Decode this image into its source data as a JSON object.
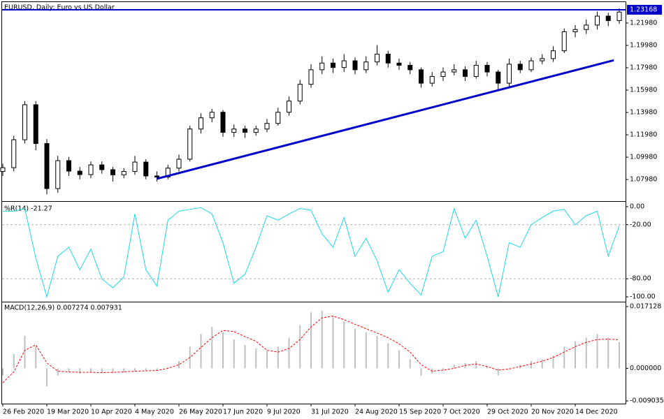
{
  "chart_data": [
    {
      "type": "candlestick",
      "title": "EURUSD, Daily: Euro vs US Dollar",
      "categories": [
        "26 Feb 2020",
        null,
        null,
        null,
        "19 Mar 2020",
        null,
        null,
        null,
        "10 Apr 2020",
        null,
        null,
        null,
        "4 May 2020",
        null,
        null,
        null,
        "26 May 2020",
        null,
        null,
        null,
        "17 Jun 2020",
        null,
        null,
        null,
        "9 Jul 2020",
        null,
        null,
        null,
        "31 Jul 2020",
        null,
        null,
        null,
        "24 Aug 2020",
        null,
        null,
        null,
        "15 Sep 2020",
        null,
        null,
        null,
        "7 Oct 2020",
        null,
        null,
        null,
        "29 Oct 2020",
        null,
        null,
        null,
        "20 Nov 2020",
        null,
        null,
        null,
        "14 Dec 2020",
        null,
        null,
        null,
        null
      ],
      "open": [
        1.087,
        1.0904,
        1.1154,
        1.1467,
        1.112,
        1.0717,
        1.0967,
        1.0873,
        1.0842,
        1.0929,
        1.0886,
        1.084,
        1.087,
        1.0954,
        1.083,
        1.082,
        1.09,
        1.098,
        1.125,
        1.135,
        1.14,
        1.122,
        1.125,
        1.122,
        1.125,
        1.13,
        1.14,
        1.15,
        1.165,
        1.178,
        1.184,
        1.18,
        1.186,
        1.178,
        1.185,
        1.192,
        1.184,
        1.182,
        1.178,
        1.166,
        1.172,
        1.176,
        1.178,
        1.172,
        1.182,
        1.176,
        1.166,
        1.183,
        1.178,
        1.186,
        1.188,
        1.195,
        1.212,
        1.214,
        1.218,
        1.226,
        1.222
      ],
      "high": [
        1.094,
        1.119,
        1.15,
        1.15,
        1.116,
        1.101,
        1.1,
        1.091,
        1.096,
        1.096,
        1.091,
        1.09,
        1.101,
        1.098,
        1.087,
        1.093,
        1.102,
        1.128,
        1.139,
        1.143,
        1.142,
        1.129,
        1.128,
        1.128,
        1.134,
        1.144,
        1.154,
        1.169,
        1.183,
        1.19,
        1.188,
        1.192,
        1.189,
        1.19,
        1.2,
        1.195,
        1.188,
        1.185,
        1.18,
        1.176,
        1.18,
        1.183,
        1.181,
        1.186,
        1.185,
        1.178,
        1.188,
        1.186,
        1.189,
        1.192,
        1.199,
        1.215,
        1.218,
        1.223,
        1.23,
        1.229,
        1.233
      ],
      "low": [
        1.083,
        1.087,
        1.112,
        1.106,
        1.0665,
        1.068,
        1.083,
        1.08,
        1.081,
        1.085,
        1.078,
        1.081,
        1.084,
        1.08,
        1.078,
        1.08,
        1.087,
        1.096,
        1.121,
        1.131,
        1.118,
        1.118,
        1.117,
        1.119,
        1.122,
        1.128,
        1.137,
        1.147,
        1.162,
        1.174,
        1.175,
        1.176,
        1.174,
        1.175,
        1.182,
        1.18,
        1.178,
        1.174,
        1.162,
        1.163,
        1.168,
        1.173,
        1.168,
        1.17,
        1.172,
        1.16,
        1.163,
        1.175,
        1.176,
        1.183,
        1.185,
        1.193,
        1.207,
        1.21,
        1.214,
        1.217,
        1.219
      ],
      "close": [
        1.0904,
        1.1154,
        1.1467,
        1.112,
        1.0717,
        1.0967,
        1.0873,
        1.0842,
        1.0929,
        1.0886,
        1.084,
        1.087,
        1.0954,
        1.083,
        1.082,
        1.09,
        1.098,
        1.125,
        1.135,
        1.14,
        1.122,
        1.125,
        1.122,
        1.125,
        1.13,
        1.14,
        1.15,
        1.165,
        1.178,
        1.184,
        1.18,
        1.186,
        1.178,
        1.185,
        1.192,
        1.184,
        1.182,
        1.178,
        1.166,
        1.172,
        1.176,
        1.178,
        1.172,
        1.182,
        1.176,
        1.166,
        1.183,
        1.178,
        1.186,
        1.188,
        1.195,
        1.212,
        1.214,
        1.218,
        1.226,
        1.222,
        1.2296
      ],
      "up_color": "#ffffff",
      "down_color": "#000000",
      "ylim": [
        1.0611,
        1.2379
      ],
      "yticks": [
        {
          "value": 1.0798,
          "label": "1.07980"
        },
        {
          "value": 1.0998,
          "label": "1.09980"
        },
        {
          "value": 1.1198,
          "label": "1.11980"
        },
        {
          "value": 1.1398,
          "label": "1.13980"
        },
        {
          "value": 1.1598,
          "label": "1.15980"
        },
        {
          "value": 1.1798,
          "label": "1.17980"
        },
        {
          "value": 1.1998,
          "label": "1.19980"
        },
        {
          "value": 1.2198,
          "label": "1.21980"
        }
      ],
      "hline": 1.23168,
      "hline_color": "#0000cd",
      "trendline": {
        "start": [
          14,
          1.0805
        ],
        "end": [
          55.5,
          1.1865
        ],
        "color": "#0000cd"
      }
    },
    {
      "type": "line",
      "label": "%R(14) -21.27",
      "values": [
        -5,
        -5,
        -2,
        -57,
        -100,
        -55,
        -45,
        -70,
        -47,
        -80,
        -90,
        -78,
        -8,
        -70,
        -88,
        -15,
        -5,
        -3,
        -1,
        -8,
        -40,
        -85,
        -75,
        -45,
        -10,
        -15,
        -8,
        -2,
        -4,
        -30,
        -45,
        -12,
        -55,
        -35,
        -60,
        -95,
        -70,
        -85,
        -98,
        -55,
        -50,
        -2,
        -35,
        -15,
        -55,
        -100,
        -40,
        -45,
        -20,
        -12,
        -5,
        -3,
        -20,
        -10,
        -5,
        -55,
        -21.27
      ],
      "color": "#1ed8e8",
      "ylim": [
        -104.6,
        4.6
      ],
      "yticks": [
        {
          "value": 0,
          "label": "0.00"
        },
        {
          "value": -20,
          "label": "-20.00"
        },
        {
          "value": -80,
          "label": "-80.00"
        },
        {
          "value": -100,
          "label": "-100.00"
        }
      ],
      "levels": [
        -20,
        -80
      ]
    },
    {
      "type": "macd",
      "label": "MACD(12,26,9) 0.007274 0.007931",
      "series": [
        {
          "type": "bar",
          "color": "#c0c0c0",
          "values": [
            -0.002,
            0.004,
            0.009,
            0.006,
            -0.005,
            -0.002,
            -0.001,
            -0.0015,
            -0.001,
            -0.0012,
            -0.0014,
            -0.0012,
            -0.0008,
            -0.0006,
            -0.0008,
            0.0002,
            0.002,
            0.006,
            0.0095,
            0.0115,
            0.01,
            0.008,
            0.0065,
            0.0055,
            0.005,
            0.006,
            0.0085,
            0.012,
            0.0155,
            0.016,
            0.0145,
            0.013,
            0.011,
            0.01,
            0.009,
            0.007,
            0.005,
            0.0025,
            -0.002,
            -0.0015,
            -0.0005,
            0.001,
            0.0015,
            0.002,
            0.0005,
            -0.002,
            0.0002,
            0.001,
            0.002,
            0.0025,
            0.0035,
            0.006,
            0.0075,
            0.0085,
            0.0095,
            0.0085,
            0.007274
          ]
        },
        {
          "type": "line",
          "color": "#ff0000",
          "dashed": true,
          "values": [
            -0.004,
            -0.001,
            0.005,
            0.0065,
            0.0015,
            -0.0008,
            -0.001,
            -0.0011,
            -0.0011,
            -0.0012,
            -0.0011,
            -0.001,
            -0.0008,
            -0.0007,
            -0.0006,
            0.0,
            0.001,
            0.003,
            0.0058,
            0.0085,
            0.0105,
            0.0102,
            0.0088,
            0.0075,
            0.005,
            0.0045,
            0.0055,
            0.008,
            0.0115,
            0.014,
            0.0145,
            0.0135,
            0.0122,
            0.011,
            0.0098,
            0.0085,
            0.0068,
            0.0045,
            0.001,
            -0.0008,
            -0.0005,
            0.0,
            0.0008,
            0.0012,
            0.0005,
            -0.0005,
            -0.0002,
            0.0005,
            0.0012,
            0.002,
            0.003,
            0.0045,
            0.006,
            0.0072,
            0.008,
            0.0081,
            0.007931
          ]
        }
      ],
      "ylim": [
        -0.0098,
        0.0181
      ],
      "yticks": [
        0.017128,
        {
          "value": 0,
          "label": "0.000000"
        },
        -0.009035
      ]
    }
  ]
}
